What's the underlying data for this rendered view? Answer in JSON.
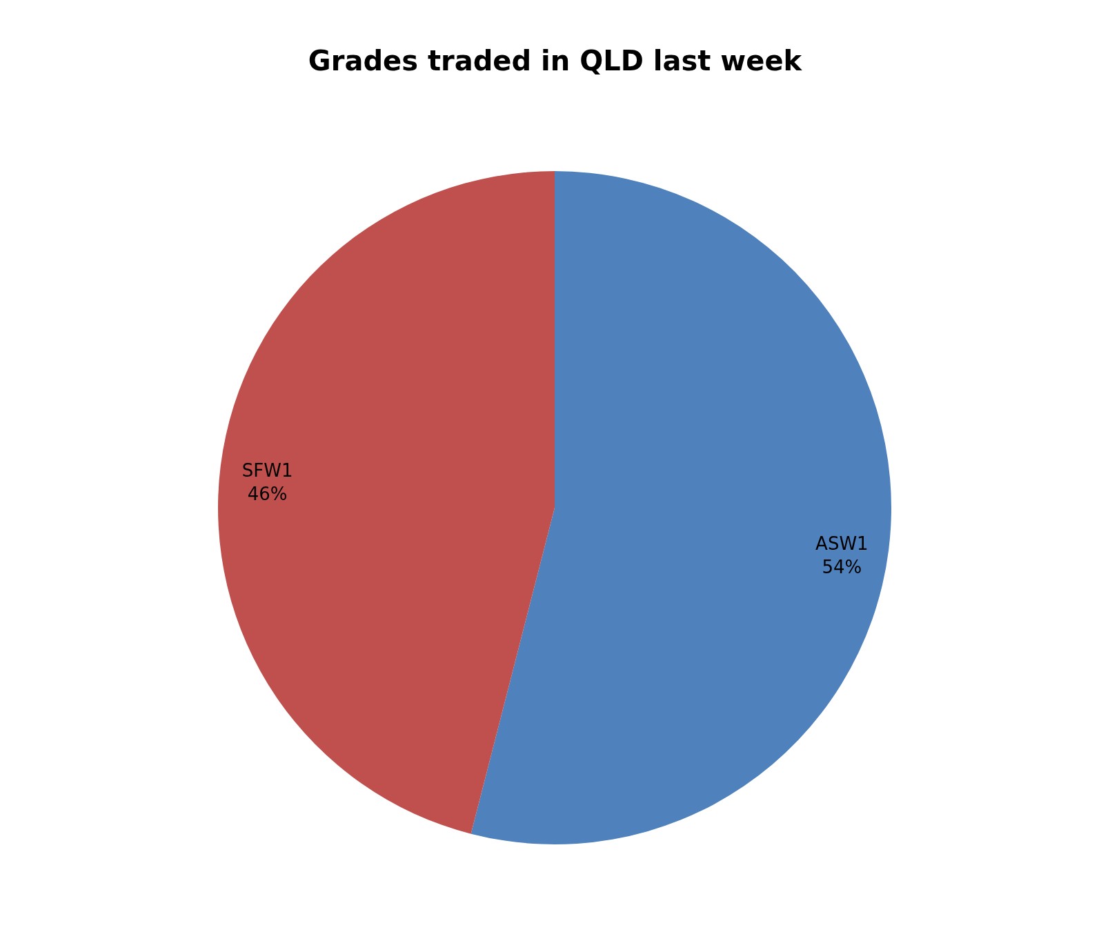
{
  "chart_data": {
    "type": "pie",
    "title": "Grades traded in QLD last week",
    "categories": [
      "ASW1",
      "SFW1"
    ],
    "values": [
      54,
      46
    ],
    "colors": [
      "#4f81bd",
      "#c0504d"
    ],
    "value_labels": [
      "54%",
      "46%"
    ],
    "legend": false
  }
}
